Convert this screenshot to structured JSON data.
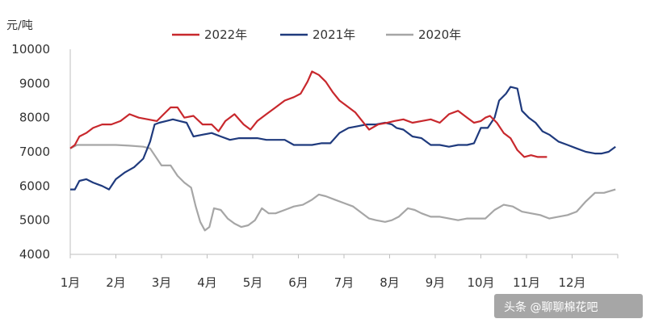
{
  "chart_data": {
    "type": "line",
    "y_unit": "元/吨",
    "ylim": [
      4000,
      10000
    ],
    "y_ticks": [
      "10000",
      "9000",
      "8000",
      "7000",
      "6000",
      "5000",
      "4000"
    ],
    "months": [
      "1月",
      "2月",
      "3月",
      "4月",
      "5月",
      "6月",
      "7月",
      "8月",
      "9月",
      "10月",
      "11月",
      "12月"
    ],
    "xlim": [
      1,
      13
    ],
    "grid": false,
    "legend_position": "top",
    "series": [
      {
        "name": "2022年",
        "color": "#c8282d",
        "points": [
          [
            1.0,
            7100
          ],
          [
            1.1,
            7200
          ],
          [
            1.2,
            7450
          ],
          [
            1.35,
            7550
          ],
          [
            1.5,
            7700
          ],
          [
            1.7,
            7800
          ],
          [
            1.9,
            7800
          ],
          [
            2.1,
            7900
          ],
          [
            2.3,
            8100
          ],
          [
            2.5,
            8000
          ],
          [
            2.7,
            7950
          ],
          [
            2.9,
            7900
          ],
          [
            3.05,
            8100
          ],
          [
            3.2,
            8300
          ],
          [
            3.35,
            8300
          ],
          [
            3.5,
            8000
          ],
          [
            3.7,
            8050
          ],
          [
            3.9,
            7800
          ],
          [
            4.1,
            7800
          ],
          [
            4.25,
            7600
          ],
          [
            4.4,
            7900
          ],
          [
            4.6,
            8100
          ],
          [
            4.8,
            7800
          ],
          [
            4.95,
            7650
          ],
          [
            5.1,
            7900
          ],
          [
            5.3,
            8100
          ],
          [
            5.5,
            8300
          ],
          [
            5.7,
            8500
          ],
          [
            5.9,
            8600
          ],
          [
            6.05,
            8700
          ],
          [
            6.2,
            9050
          ],
          [
            6.3,
            9350
          ],
          [
            6.45,
            9250
          ],
          [
            6.6,
            9050
          ],
          [
            6.75,
            8750
          ],
          [
            6.9,
            8500
          ],
          [
            7.05,
            8350
          ],
          [
            7.25,
            8150
          ],
          [
            7.4,
            7900
          ],
          [
            7.55,
            7650
          ],
          [
            7.75,
            7800
          ],
          [
            7.95,
            7850
          ],
          [
            8.1,
            7900
          ],
          [
            8.3,
            7950
          ],
          [
            8.5,
            7850
          ],
          [
            8.7,
            7900
          ],
          [
            8.9,
            7950
          ],
          [
            9.1,
            7850
          ],
          [
            9.3,
            8100
          ],
          [
            9.5,
            8200
          ],
          [
            9.7,
            8000
          ],
          [
            9.85,
            7850
          ],
          [
            10.0,
            7900
          ],
          [
            10.1,
            8000
          ],
          [
            10.2,
            8050
          ],
          [
            10.35,
            7850
          ],
          [
            10.5,
            7550
          ],
          [
            10.65,
            7400
          ],
          [
            10.8,
            7050
          ],
          [
            10.95,
            6850
          ],
          [
            11.1,
            6900
          ],
          [
            11.25,
            6850
          ],
          [
            11.45,
            6850
          ]
        ]
      },
      {
        "name": "2021年",
        "color": "#1f3a7d",
        "points": [
          [
            1.0,
            5900
          ],
          [
            1.1,
            5900
          ],
          [
            1.2,
            6150
          ],
          [
            1.35,
            6200
          ],
          [
            1.5,
            6100
          ],
          [
            1.7,
            6000
          ],
          [
            1.85,
            5900
          ],
          [
            2.0,
            6200
          ],
          [
            2.2,
            6400
          ],
          [
            2.4,
            6550
          ],
          [
            2.6,
            6800
          ],
          [
            2.75,
            7300
          ],
          [
            2.85,
            7800
          ],
          [
            2.95,
            7850
          ],
          [
            3.1,
            7900
          ],
          [
            3.25,
            7950
          ],
          [
            3.4,
            7900
          ],
          [
            3.55,
            7850
          ],
          [
            3.7,
            7450
          ],
          [
            3.9,
            7500
          ],
          [
            4.1,
            7550
          ],
          [
            4.3,
            7450
          ],
          [
            4.5,
            7350
          ],
          [
            4.7,
            7400
          ],
          [
            4.9,
            7400
          ],
          [
            5.1,
            7400
          ],
          [
            5.3,
            7350
          ],
          [
            5.5,
            7350
          ],
          [
            5.7,
            7350
          ],
          [
            5.9,
            7200
          ],
          [
            6.1,
            7200
          ],
          [
            6.3,
            7200
          ],
          [
            6.5,
            7250
          ],
          [
            6.7,
            7250
          ],
          [
            6.9,
            7550
          ],
          [
            7.1,
            7700
          ],
          [
            7.3,
            7750
          ],
          [
            7.5,
            7800
          ],
          [
            7.7,
            7800
          ],
          [
            7.9,
            7850
          ],
          [
            8.05,
            7800
          ],
          [
            8.15,
            7700
          ],
          [
            8.3,
            7650
          ],
          [
            8.5,
            7450
          ],
          [
            8.7,
            7400
          ],
          [
            8.9,
            7200
          ],
          [
            9.1,
            7200
          ],
          [
            9.3,
            7150
          ],
          [
            9.5,
            7200
          ],
          [
            9.7,
            7200
          ],
          [
            9.85,
            7250
          ],
          [
            10.0,
            7700
          ],
          [
            10.15,
            7700
          ],
          [
            10.3,
            8000
          ],
          [
            10.4,
            8500
          ],
          [
            10.55,
            8700
          ],
          [
            10.65,
            8900
          ],
          [
            10.8,
            8850
          ],
          [
            10.9,
            8200
          ],
          [
            11.05,
            8000
          ],
          [
            11.2,
            7850
          ],
          [
            11.35,
            7600
          ],
          [
            11.5,
            7500
          ],
          [
            11.7,
            7300
          ],
          [
            11.9,
            7200
          ],
          [
            12.1,
            7100
          ],
          [
            12.3,
            7000
          ],
          [
            12.5,
            6950
          ],
          [
            12.65,
            6950
          ],
          [
            12.8,
            7000
          ],
          [
            12.95,
            7150
          ]
        ]
      },
      {
        "name": "2020年",
        "color": "#a6a6a6",
        "points": [
          [
            1.0,
            7100
          ],
          [
            1.15,
            7200
          ],
          [
            1.4,
            7200
          ],
          [
            1.7,
            7200
          ],
          [
            2.0,
            7200
          ],
          [
            2.3,
            7180
          ],
          [
            2.6,
            7150
          ],
          [
            2.75,
            7100
          ],
          [
            2.85,
            6900
          ],
          [
            3.0,
            6600
          ],
          [
            3.2,
            6600
          ],
          [
            3.35,
            6300
          ],
          [
            3.5,
            6100
          ],
          [
            3.65,
            5950
          ],
          [
            3.75,
            5400
          ],
          [
            3.85,
            4950
          ],
          [
            3.95,
            4700
          ],
          [
            4.05,
            4800
          ],
          [
            4.15,
            5350
          ],
          [
            4.3,
            5300
          ],
          [
            4.45,
            5050
          ],
          [
            4.6,
            4900
          ],
          [
            4.75,
            4800
          ],
          [
            4.9,
            4850
          ],
          [
            5.05,
            5000
          ],
          [
            5.2,
            5350
          ],
          [
            5.35,
            5200
          ],
          [
            5.5,
            5200
          ],
          [
            5.7,
            5300
          ],
          [
            5.9,
            5400
          ],
          [
            6.1,
            5450
          ],
          [
            6.3,
            5600
          ],
          [
            6.45,
            5750
          ],
          [
            6.6,
            5700
          ],
          [
            6.8,
            5600
          ],
          [
            7.0,
            5500
          ],
          [
            7.2,
            5400
          ],
          [
            7.4,
            5200
          ],
          [
            7.55,
            5050
          ],
          [
            7.7,
            5000
          ],
          [
            7.9,
            4950
          ],
          [
            8.05,
            5000
          ],
          [
            8.2,
            5100
          ],
          [
            8.4,
            5350
          ],
          [
            8.55,
            5300
          ],
          [
            8.7,
            5200
          ],
          [
            8.9,
            5100
          ],
          [
            9.1,
            5100
          ],
          [
            9.3,
            5050
          ],
          [
            9.5,
            5000
          ],
          [
            9.7,
            5050
          ],
          [
            9.9,
            5050
          ],
          [
            10.1,
            5050
          ],
          [
            10.3,
            5300
          ],
          [
            10.5,
            5450
          ],
          [
            10.7,
            5400
          ],
          [
            10.9,
            5250
          ],
          [
            11.1,
            5200
          ],
          [
            11.3,
            5150
          ],
          [
            11.5,
            5050
          ],
          [
            11.7,
            5100
          ],
          [
            11.9,
            5150
          ],
          [
            12.1,
            5250
          ],
          [
            12.3,
            5550
          ],
          [
            12.5,
            5800
          ],
          [
            12.7,
            5800
          ],
          [
            12.95,
            5900
          ]
        ]
      }
    ]
  },
  "watermark": {
    "text": "头条 @聊聊棉花吧"
  }
}
